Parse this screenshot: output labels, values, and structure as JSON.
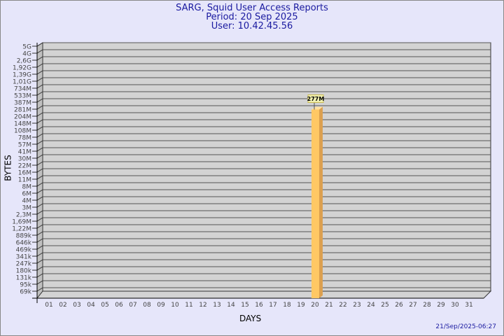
{
  "title": "SARG, Squid User Access Reports",
  "period": "Period: 20 Sep 2025",
  "user": "User: 10.42.45.56",
  "timestamp": "21/Sep/2025-06:27",
  "chart_data": {
    "type": "bar",
    "title": "SARG, Squid User Access Reports",
    "xlabel": "DAYS",
    "ylabel": "BYTES",
    "yscale": "log",
    "ytick_labels": [
      "5G",
      "4G",
      "2,6G",
      "1,92G",
      "1,39G",
      "1,01G",
      "734M",
      "533M",
      "387M",
      "281M",
      "204M",
      "148M",
      "108M",
      "78M",
      "57M",
      "41M",
      "30M",
      "22M",
      "16M",
      "11M",
      "8M",
      "6M",
      "4M",
      "3M",
      "2,3M",
      "1,69M",
      "1,22M",
      "889k",
      "646k",
      "469k",
      "341k",
      "247k",
      "180k",
      "131k",
      "95k",
      "69k"
    ],
    "categories": [
      "01",
      "02",
      "03",
      "04",
      "05",
      "06",
      "07",
      "08",
      "09",
      "10",
      "11",
      "12",
      "13",
      "14",
      "15",
      "16",
      "17",
      "18",
      "19",
      "20",
      "21",
      "22",
      "23",
      "24",
      "25",
      "26",
      "27",
      "28",
      "29",
      "30",
      "31"
    ],
    "bars": [
      {
        "day": "20",
        "value": "277M"
      }
    ],
    "grid": true,
    "colors": {
      "bar": "#ffc864",
      "bar_side": "#dca050",
      "plot": "#d3d3d3",
      "background": "#e6e6fa",
      "title": "#1a1aa0"
    }
  }
}
